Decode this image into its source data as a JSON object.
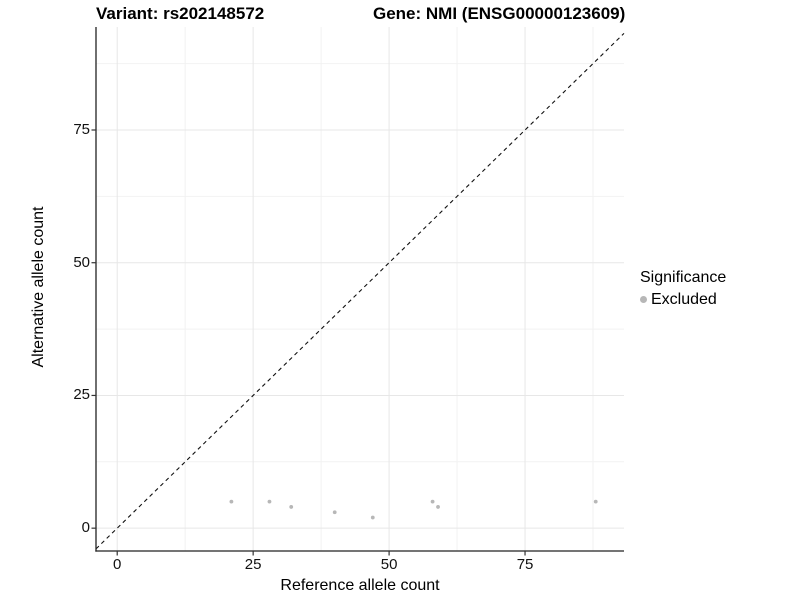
{
  "chart_data": {
    "type": "scatter",
    "title_left": "Variant: rs202148572",
    "title_right": "Gene: NMI (ENSG00000123609)",
    "xlabel": "Reference allele count",
    "ylabel": "Alternative allele count",
    "xlim": [
      -3.9,
      93.2
    ],
    "ylim": [
      -4.3,
      94.4
    ],
    "x_major_ticks": [
      0,
      25,
      50,
      75
    ],
    "y_major_ticks": [
      0,
      25,
      50,
      75
    ],
    "x_minor_ticks": [
      12.5,
      37.5,
      62.5,
      87.5
    ],
    "y_minor_ticks": [
      12.5,
      37.5,
      62.5,
      87.5
    ],
    "grid": true,
    "series": [
      {
        "name": "Excluded",
        "color": "#b7b7b7",
        "points": [
          [
            21,
            5
          ],
          [
            28,
            5
          ],
          [
            32,
            4
          ],
          [
            40,
            3
          ],
          [
            47,
            2
          ],
          [
            58,
            5
          ],
          [
            59,
            4
          ],
          [
            88,
            5
          ]
        ]
      }
    ],
    "reference_line": {
      "type": "identity",
      "slope": 1,
      "intercept": 0,
      "style": "dashed",
      "color": "#111111"
    },
    "legend": {
      "title": "Significance",
      "position": "right",
      "items": [
        {
          "label": "Excluded",
          "color": "#b7b7b7"
        }
      ]
    },
    "colors": {
      "grid_major": "#e7e7e7",
      "grid_minor": "#f2f2f2",
      "axis_line": "#222222",
      "tick_mark": "#333333",
      "point": "#b7b7b7"
    }
  }
}
